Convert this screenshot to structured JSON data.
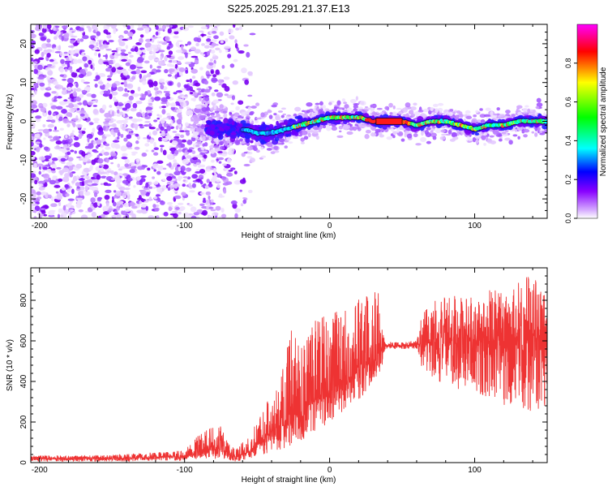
{
  "title": "S225.2025.291.21.37.E13",
  "chart_data": [
    {
      "type": "heatmap",
      "name": "spectrogram",
      "xlabel": "Height of straight line (km)",
      "ylabel": "Frequency (Hz)",
      "xlim": [
        -206,
        150
      ],
      "ylim": [
        -25,
        25
      ],
      "xticks": [
        -200,
        -100,
        0,
        100
      ],
      "xtick_labels": [
        "-200",
        "-100",
        "0",
        "100"
      ],
      "yticks": [
        -20,
        -10,
        0,
        10,
        20
      ],
      "ytick_labels": [
        "-20",
        "-10",
        "0",
        "10",
        "20"
      ],
      "colorbar": {
        "label": "Normalized spectral amplitude",
        "range": [
          0,
          1
        ],
        "ticks": [
          0.0,
          0.2,
          0.4,
          0.6,
          0.8
        ],
        "tick_labels": [
          "0.0",
          "0.2",
          "0.4",
          "0.6",
          "0.8"
        ],
        "colors": [
          "#ffffff",
          "#8800ff",
          "#0000ff",
          "#00ffff",
          "#00ff00",
          "#ffff00",
          "#ff0000",
          "#ff00ff"
        ]
      },
      "ridge_frequency_hz": {
        "x": [
          -60,
          -50,
          -40,
          -30,
          -20,
          -10,
          0,
          10,
          20,
          30,
          40,
          50,
          60,
          70,
          80,
          90,
          100,
          110,
          120,
          130,
          140,
          150
        ],
        "y": [
          -2,
          -3,
          -3,
          -2,
          -1,
          0,
          1,
          1,
          1,
          0,
          0,
          0,
          -1,
          0,
          0,
          -1,
          -2,
          -1,
          -1,
          0,
          0,
          0
        ]
      },
      "noise_region": {
        "x_from": -206,
        "x_to": -60,
        "amplitude": "low, scattered"
      }
    },
    {
      "type": "line",
      "name": "snr",
      "xlabel": "Height of straight line (km)",
      "ylabel": "SNR (10 * v/v)",
      "xlim": [
        -206,
        150
      ],
      "ylim": [
        0,
        960
      ],
      "xticks": [
        -200,
        -100,
        0,
        100
      ],
      "xtick_labels": [
        "-200",
        "-100",
        "0",
        "100"
      ],
      "yticks": [
        0,
        200,
        400,
        600,
        800
      ],
      "ytick_labels": [
        "0",
        "200",
        "400",
        "600",
        "800"
      ],
      "line_color": "#ee3333",
      "envelope": {
        "x": [
          -206,
          -150,
          -100,
          -85,
          -75,
          -65,
          -55,
          -45,
          -35,
          -25,
          -15,
          -5,
          5,
          15,
          25,
          30,
          35,
          38,
          40,
          50,
          60,
          65,
          80,
          100,
          120,
          140,
          150
        ],
        "low": [
          5,
          5,
          10,
          20,
          15,
          5,
          20,
          40,
          60,
          90,
          120,
          170,
          230,
          280,
          340,
          380,
          420,
          540,
          560,
          560,
          560,
          420,
          380,
          330,
          280,
          250,
          260
        ],
        "mean": [
          20,
          20,
          30,
          60,
          70,
          25,
          60,
          120,
          180,
          230,
          280,
          330,
          380,
          430,
          480,
          500,
          540,
          575,
          575,
          578,
          580,
          590,
          600,
          600,
          600,
          605,
          600
        ],
        "high": [
          35,
          38,
          60,
          180,
          180,
          60,
          140,
          280,
          380,
          700,
          680,
          720,
          760,
          790,
          830,
          850,
          860,
          600,
          595,
          596,
          600,
          780,
          820,
          840,
          870,
          930,
          880
        ]
      }
    }
  ]
}
